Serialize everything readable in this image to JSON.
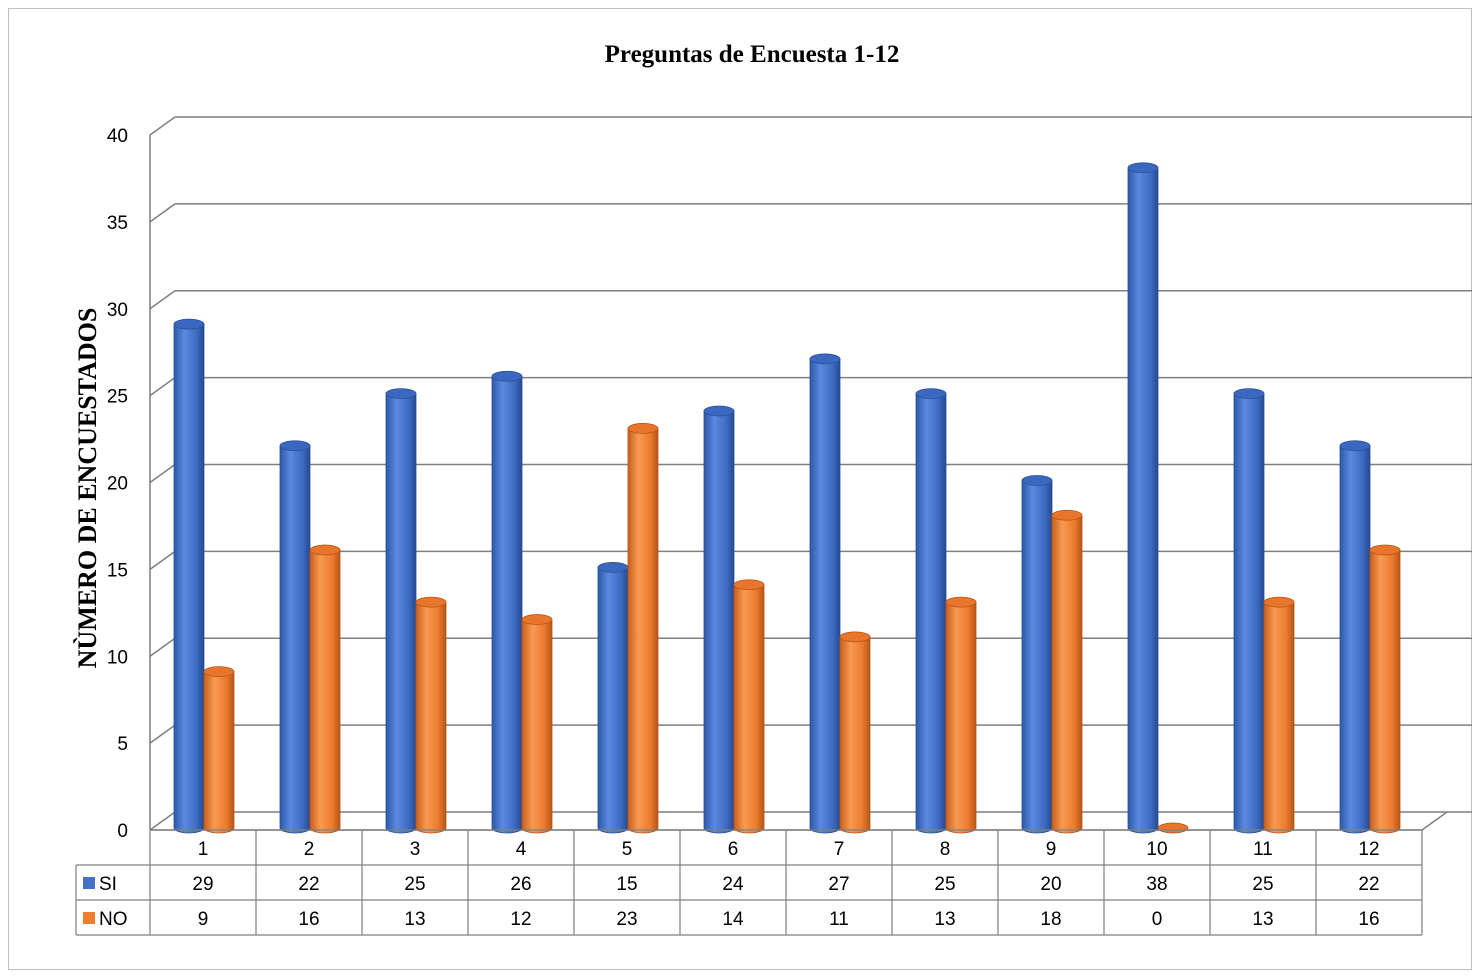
{
  "chart_data": {
    "type": "bar",
    "title": "Preguntas de Encuesta 1-12",
    "xlabel": "",
    "ylabel": "NÙMERO DE ENCUESTADOS",
    "ylim": [
      0,
      40
    ],
    "yticks": [
      0,
      5,
      10,
      15,
      20,
      25,
      30,
      35,
      40
    ],
    "categories": [
      "1",
      "2",
      "3",
      "4",
      "5",
      "6",
      "7",
      "8",
      "9",
      "10",
      "11",
      "12"
    ],
    "series": [
      {
        "name": "SI",
        "color": "#4472c4",
        "values": [
          29,
          22,
          25,
          26,
          15,
          24,
          27,
          25,
          20,
          38,
          25,
          22
        ]
      },
      {
        "name": "NO",
        "color": "#ed7d31",
        "values": [
          9,
          16,
          13,
          12,
          23,
          14,
          11,
          13,
          18,
          0,
          13,
          16
        ]
      }
    ],
    "grid": true,
    "style": "3d-cylinder",
    "data_table": true
  }
}
